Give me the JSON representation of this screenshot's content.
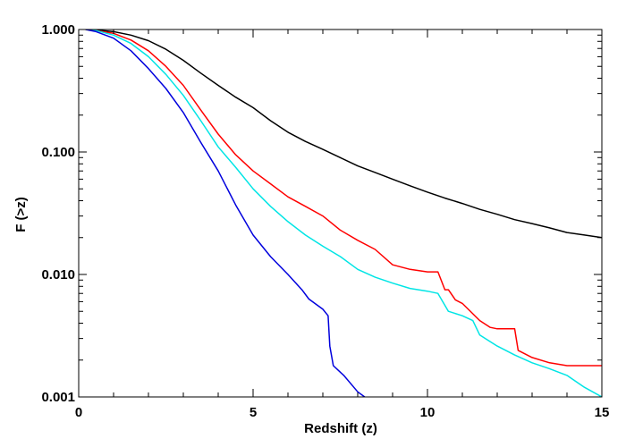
{
  "chart_data": {
    "type": "line",
    "title": "",
    "xlabel": "Redshift (z)",
    "ylabel": "F (>z)",
    "xlim": [
      0,
      15
    ],
    "ylim": [
      0.001,
      1.0
    ],
    "yscale": "log",
    "grid": false,
    "x_ticks": [
      {
        "value": 0,
        "label": "0"
      },
      {
        "value": 5,
        "label": "5"
      },
      {
        "value": 10,
        "label": "10"
      },
      {
        "value": 15,
        "label": "15"
      }
    ],
    "y_ticks": [
      {
        "value": 1.0,
        "label": "1.000"
      },
      {
        "value": 0.1,
        "label": "0.100"
      },
      {
        "value": 0.01,
        "label": "0.010"
      },
      {
        "value": 0.001,
        "label": "0.001"
      }
    ],
    "series": [
      {
        "color": "#000000",
        "x": [
          0.2,
          0.5,
          1.0,
          1.5,
          2.0,
          2.5,
          3.0,
          3.5,
          4.0,
          4.5,
          5.0,
          5.5,
          6.0,
          6.5,
          7.0,
          7.5,
          8.0,
          8.5,
          9.0,
          9.5,
          10.0,
          10.5,
          11.0,
          11.5,
          12.0,
          12.5,
          13.0,
          13.5,
          14.0,
          14.5,
          15.0
        ],
        "y": [
          1.0,
          0.99,
          0.96,
          0.9,
          0.81,
          0.69,
          0.56,
          0.44,
          0.35,
          0.28,
          0.23,
          0.18,
          0.145,
          0.122,
          0.105,
          0.09,
          0.077,
          0.068,
          0.06,
          0.053,
          0.047,
          0.042,
          0.038,
          0.034,
          0.031,
          0.028,
          0.026,
          0.024,
          0.022,
          0.021,
          0.02
        ]
      },
      {
        "color": "#ff0000",
        "x": [
          0.2,
          0.5,
          1.0,
          1.5,
          2.0,
          2.5,
          3.0,
          3.5,
          4.0,
          4.5,
          5.0,
          5.5,
          6.0,
          6.5,
          7.0,
          7.5,
          8.0,
          8.5,
          9.0,
          9.5,
          10.0,
          10.3,
          10.5,
          10.6,
          10.8,
          11.0,
          11.5,
          11.8,
          12.0,
          12.5,
          12.6,
          13.0,
          13.5,
          14.0,
          15.0
        ],
        "y": [
          1.0,
          0.98,
          0.93,
          0.82,
          0.67,
          0.5,
          0.35,
          0.22,
          0.14,
          0.095,
          0.07,
          0.055,
          0.043,
          0.036,
          0.03,
          0.023,
          0.019,
          0.016,
          0.012,
          0.011,
          0.0105,
          0.0105,
          0.0075,
          0.0075,
          0.0062,
          0.0058,
          0.0042,
          0.0037,
          0.0036,
          0.0036,
          0.0024,
          0.0021,
          0.0019,
          0.0018,
          0.0018
        ]
      },
      {
        "color": "#00e5e5",
        "x": [
          0.2,
          0.5,
          1.0,
          1.5,
          2.0,
          2.5,
          3.0,
          3.5,
          4.0,
          4.5,
          5.0,
          5.5,
          6.0,
          6.5,
          7.0,
          7.5,
          8.0,
          8.5,
          9.0,
          9.5,
          10.0,
          10.3,
          10.6,
          11.0,
          11.3,
          11.5,
          12.0,
          12.5,
          13.0,
          13.5,
          14.0,
          14.5,
          15.0
        ],
        "y": [
          1.0,
          0.98,
          0.9,
          0.77,
          0.6,
          0.43,
          0.29,
          0.18,
          0.11,
          0.075,
          0.05,
          0.036,
          0.027,
          0.021,
          0.017,
          0.014,
          0.011,
          0.0095,
          0.0085,
          0.0077,
          0.0073,
          0.007,
          0.005,
          0.0046,
          0.0042,
          0.0032,
          0.0026,
          0.0022,
          0.0019,
          0.0017,
          0.0015,
          0.0012,
          0.001
        ]
      },
      {
        "color": "#0000dd",
        "x": [
          0.2,
          0.5,
          1.0,
          1.5,
          2.0,
          2.5,
          3.0,
          3.5,
          4.0,
          4.5,
          5.0,
          5.5,
          6.0,
          6.4,
          6.6,
          7.0,
          7.15,
          7.2,
          7.3,
          7.6,
          8.0,
          8.2
        ],
        "y": [
          1.0,
          0.96,
          0.85,
          0.67,
          0.48,
          0.33,
          0.21,
          0.12,
          0.07,
          0.037,
          0.021,
          0.014,
          0.01,
          0.0075,
          0.0063,
          0.0052,
          0.0046,
          0.0026,
          0.0018,
          0.0015,
          0.0011,
          0.001
        ]
      }
    ]
  }
}
